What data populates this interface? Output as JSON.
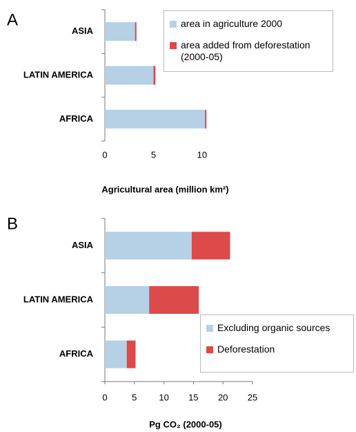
{
  "chart_data": [
    {
      "type": "stacked_barh",
      "label": "A",
      "categories": [
        "ASIA",
        "LATIN AMERICA",
        "AFRICA"
      ],
      "series": [
        {
          "name": "area in agriculture 2000",
          "color": "#b6d0e6",
          "values": [
            3.1,
            5.0,
            10.3
          ]
        },
        {
          "name": "area added from deforestation (2000-05)",
          "color": "#dc4a4a",
          "values": [
            0.15,
            0.2,
            0.15
          ]
        }
      ],
      "xlim": [
        0,
        11
      ],
      "xticks": [
        0,
        5,
        10
      ],
      "xlabel": "Agricultural area (million km²)"
    },
    {
      "type": "stacked_barh",
      "label": "B",
      "categories": [
        "ASIA",
        "LATIN AMERICA",
        "AFRICA"
      ],
      "series": [
        {
          "name": "Excluding organic sources",
          "color": "#b6d0e6",
          "values": [
            14.7,
            7.5,
            3.7
          ]
        },
        {
          "name": "Deforestation",
          "color": "#dc4a4a",
          "values": [
            6.5,
            8.4,
            1.5
          ]
        }
      ],
      "xlim": [
        0,
        25
      ],
      "xticks": [
        0,
        5,
        10,
        15,
        20,
        25
      ],
      "xlabel": "Pg CO₂ (2000-05)"
    }
  ]
}
